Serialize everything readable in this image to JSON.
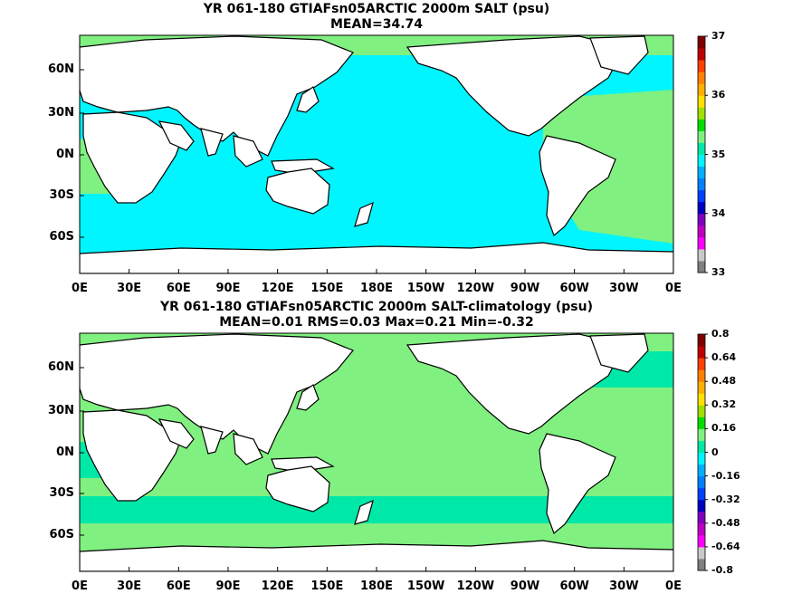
{
  "colors": {
    "ocean_salt": "#00f5ff",
    "band_green": "#80f080",
    "band_aqua": "#00e8a8",
    "land": "#ffffff",
    "coast": "#000000",
    "palette": [
      "#7f7f7f",
      "#c8c8c8",
      "#ff00ff",
      "#c000c0",
      "#8000c0",
      "#0000c0",
      "#0040ff",
      "#0080ff",
      "#00b0ff",
      "#00f5ff",
      "#00e8a8",
      "#80f080",
      "#00e000",
      "#a0e000",
      "#ffe000",
      "#ffb000",
      "#ff8000",
      "#ff4000",
      "#c00000",
      "#800000"
    ]
  },
  "panels": [
    {
      "id": "top",
      "title_line1": "YR 061-180 GTIAFsn05ARCTIC 2000m SALT (psu)",
      "title_line2": "MEAN=34.74",
      "colorbar": {
        "ticks": [
          "37",
          "36",
          "35",
          "34",
          "33"
        ],
        "min": 33,
        "max": 37
      },
      "ocean_color": "ocean_salt"
    },
    {
      "id": "bottom",
      "title_line1": "YR 061-180 GTIAFsn05ARCTIC 2000m SALT-climatology (psu)",
      "title_line2": "MEAN=0.01   RMS=0.03   Max=0.21   Min=-0.32",
      "colorbar": {
        "ticks": [
          "0.8",
          "0.64",
          "0.48",
          "0.32",
          "0.16",
          "0",
          "-0.16",
          "-0.32",
          "-0.48",
          "-0.64",
          "-0.8"
        ],
        "min": -0.8,
        "max": 0.8
      },
      "ocean_color": "band_green"
    }
  ],
  "x_ticks": [
    "0E",
    "30E",
    "60E",
    "90E",
    "120E",
    "150E",
    "180E",
    "150W",
    "120W",
    "90W",
    "60W",
    "30W",
    "0E"
  ],
  "y_ticks": [
    "60N",
    "30N",
    "0N",
    "30S",
    "60S"
  ]
}
